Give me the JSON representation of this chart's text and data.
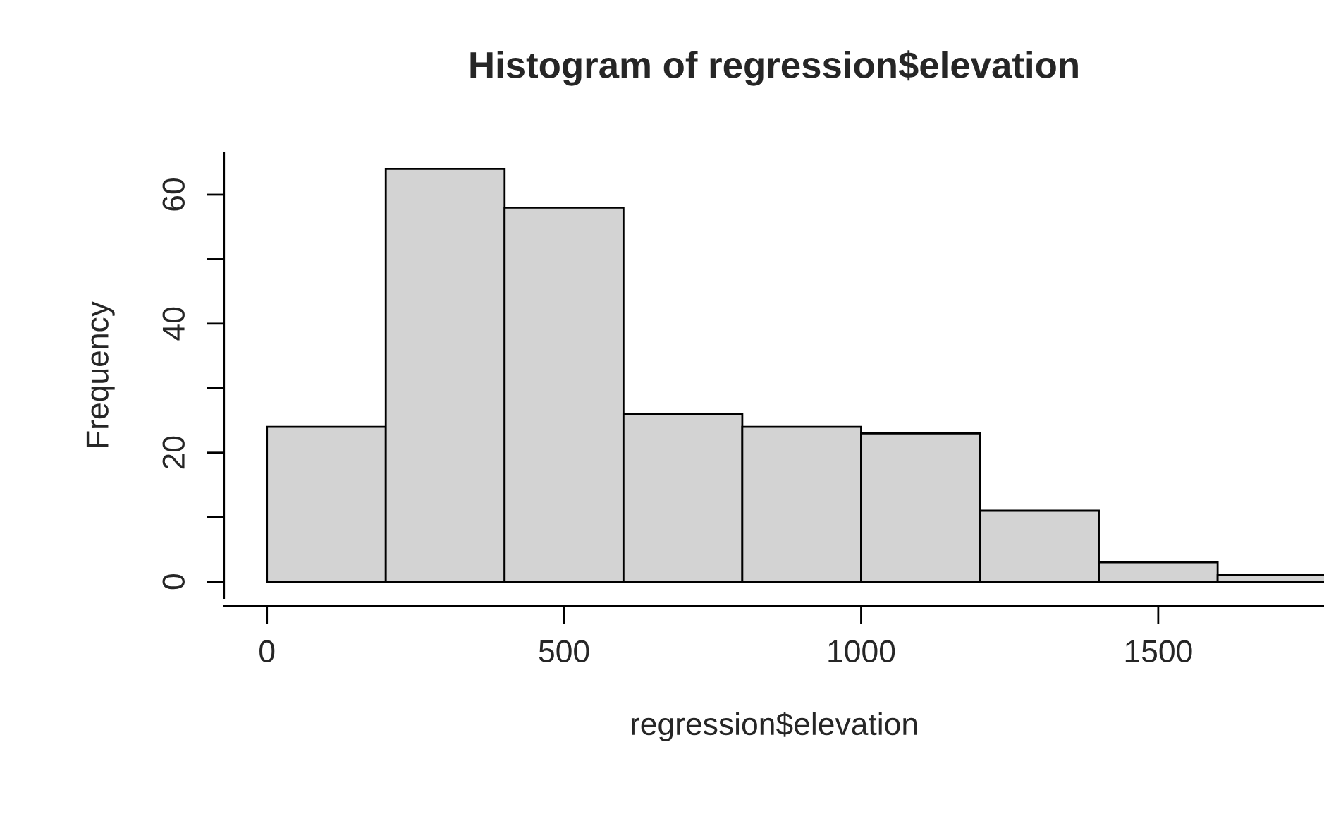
{
  "chart_data": {
    "type": "histogram",
    "title": "Histogram of regression$elevation",
    "xlabel": "regression$elevation",
    "ylabel": "Frequency",
    "bins": [
      0,
      200,
      400,
      600,
      800,
      1000,
      1200,
      1400,
      1600,
      1800
    ],
    "values": [
      24,
      64,
      58,
      26,
      24,
      23,
      11,
      3,
      1
    ],
    "color": "#d3d3d3",
    "xlim": [
      -72,
      1779
    ],
    "ylim": [
      -2.56,
      66.56
    ],
    "xticks": [
      0,
      500,
      1000,
      1500
    ],
    "yticks": [
      0,
      {
        "value": 10,
        "label": null
      },
      20,
      {
        "value": 30,
        "label": null
      },
      40,
      {
        "value": 50,
        "label": null
      },
      60
    ],
    "grid": false
  }
}
